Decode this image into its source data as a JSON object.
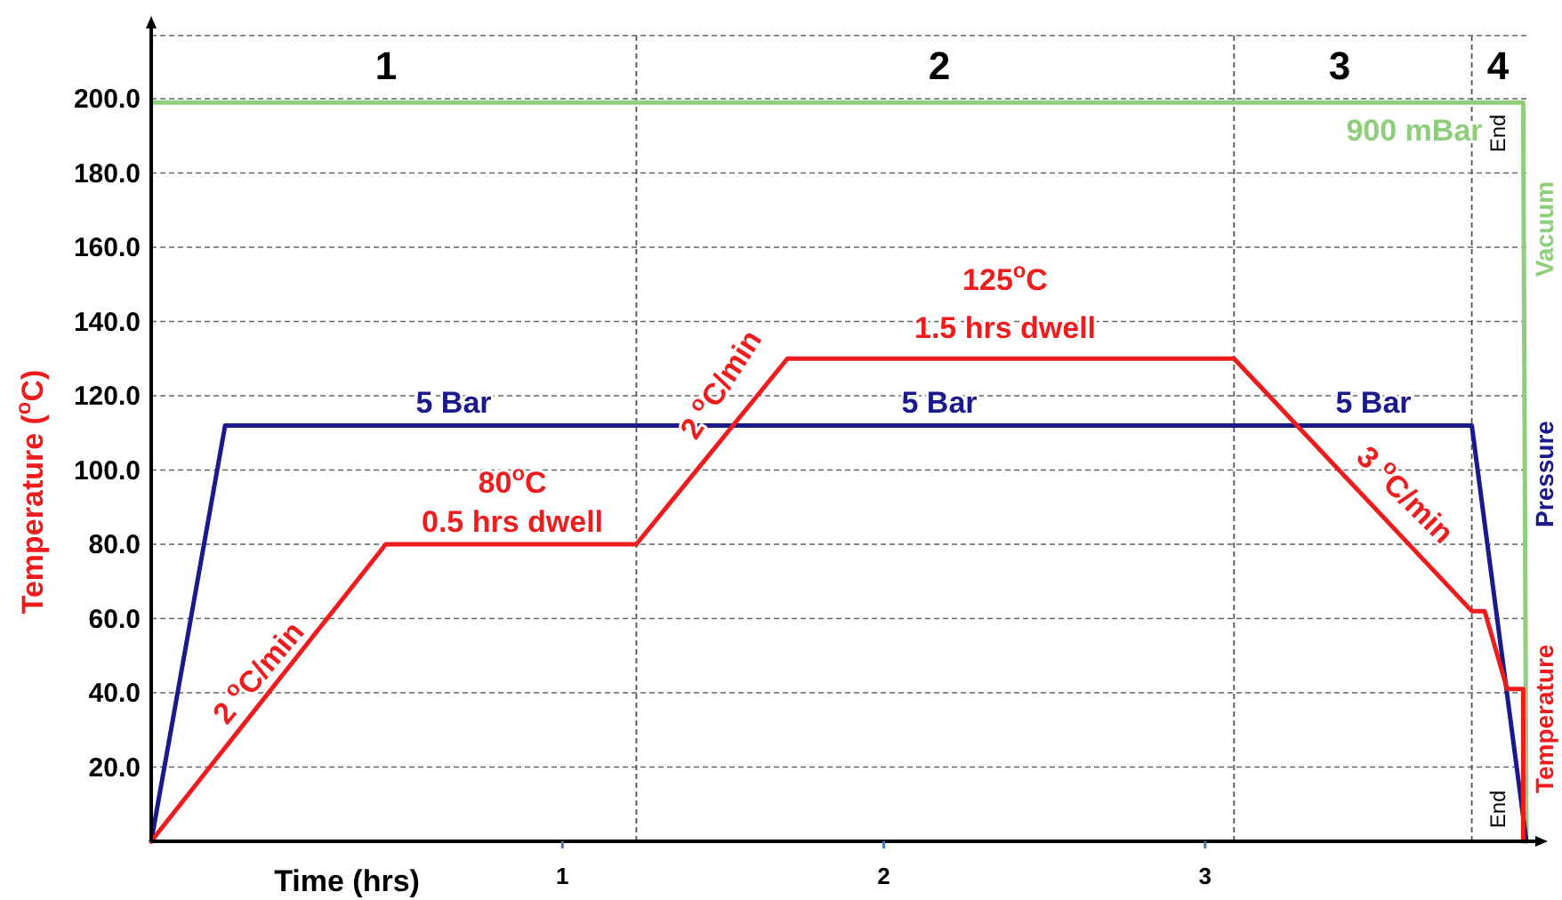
{
  "chart_data": {
    "type": "line",
    "xlabel": "Time (hrs)",
    "ylabel": "Temperature ($^{o}$C)",
    "xlim": [
      -0.28,
      4.0
    ],
    "xticks": [
      1,
      2,
      3
    ],
    "ylim": [
      0,
      217
    ],
    "yticks": [
      {
        "value": 20,
        "label": "20.0"
      },
      {
        "value": 40,
        "label": "40.0"
      },
      {
        "value": 60,
        "label": "60.0"
      },
      {
        "value": 80,
        "label": "80.0"
      },
      {
        "value": 100,
        "label": "100.0"
      },
      {
        "value": 120,
        "label": "120.0"
      },
      {
        "value": 140,
        "label": "140.0"
      },
      {
        "value": 160,
        "label": "160.0"
      },
      {
        "value": 180,
        "label": "180.0"
      },
      {
        "value": 200,
        "label": "200.0"
      }
    ],
    "grid": "y",
    "legend": "right",
    "marker": "none",
    "line_style": "solid",
    "series": [
      {
        "name": "Vacuum",
        "color": "#8fce7a",
        "x": [
          -0.28,
          3.99,
          4.0
        ],
        "values": [
          199,
          199,
          0
        ]
      },
      {
        "name": "Pressure",
        "color": "#1a1a8c",
        "x": [
          -0.28,
          -0.05,
          3.83,
          4.0
        ],
        "values": [
          0,
          112,
          112,
          0
        ]
      },
      {
        "name": "Temperature",
        "color": "#ee1c1c",
        "x": [
          -0.28,
          0.45,
          1.23,
          1.7,
          3.09,
          3.83,
          3.87,
          3.94,
          3.99,
          3.99
        ],
        "values": [
          0,
          80,
          80,
          130,
          130,
          62,
          62,
          41,
          41,
          0
        ]
      }
    ],
    "ref_lines": [
      {
        "axis": "x",
        "value": 1.23,
        "color": "#555555",
        "line_style": "dashed"
      },
      {
        "axis": "x",
        "value": 3.09,
        "color": "#555555",
        "line_style": "dashed"
      },
      {
        "axis": "x",
        "value": 3.83,
        "color": "#555555",
        "line_style": "dashed"
      }
    ],
    "annotations": [
      "900 mBar",
      "5 Bar",
      "5 Bar",
      "5 Bar",
      "80$^{o}$C",
      "0.5 hrs dwell",
      "125$^{o}$C",
      "1.5 hrs dwell",
      "2 $^{o}$C/min",
      "2 $^{o}$C/min",
      "3 $^{o}$C/min",
      "End",
      "End",
      "1",
      "2",
      "3",
      "4"
    ]
  }
}
